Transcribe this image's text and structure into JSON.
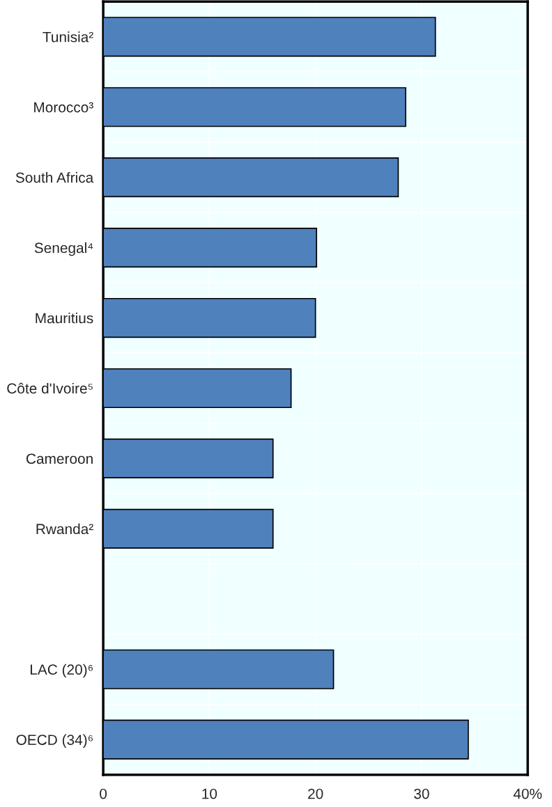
{
  "chart_data": {
    "type": "bar",
    "orientation": "horizontal",
    "categories": [
      "Tunisia²",
      "Morocco³",
      "South Africa",
      "Senegal⁴",
      "Mauritius",
      "Côte d'Ivoire⁵",
      "Cameroon",
      "Rwanda²",
      null,
      "LAC (20)⁶",
      "OECD (34)⁶"
    ],
    "values": [
      31.3,
      28.5,
      27.8,
      20.1,
      20.0,
      17.7,
      16.0,
      16.0,
      null,
      21.7,
      34.4
    ],
    "color": "#4f81bd",
    "xlim": [
      0,
      40
    ],
    "xticks": [
      0,
      10,
      20,
      30,
      {
        "value": 40,
        "label": "40%"
      }
    ],
    "grid": true
  }
}
